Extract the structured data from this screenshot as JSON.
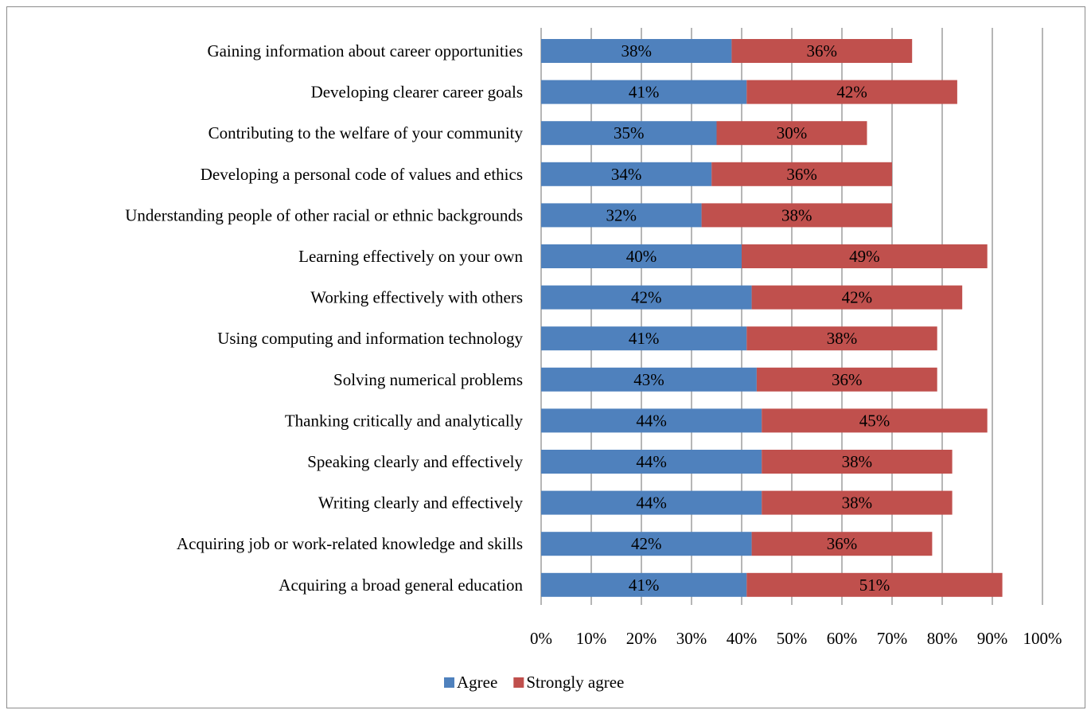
{
  "chart_data": {
    "type": "bar",
    "orientation": "horizontal",
    "stacked": true,
    "categories": [
      "Gaining information about career opportunities",
      "Developing clearer career goals",
      "Contributing to the welfare of your community",
      "Developing a personal code of values and ethics",
      "Understanding people of other racial or ethnic backgrounds",
      "Learning effectively on your own",
      "Working effectively with others",
      "Using computing and information technology",
      "Solving numerical problems",
      "Thanking critically and analytically",
      "Speaking clearly and effectively",
      "Writing clearly and effectively",
      "Acquiring job or work-related knowledge and skills",
      "Acquiring a broad general education"
    ],
    "series": [
      {
        "name": "Agree",
        "color": "#4f81bd",
        "values": [
          38,
          41,
          35,
          34,
          32,
          40,
          42,
          41,
          43,
          44,
          44,
          44,
          42,
          41
        ],
        "labels": [
          "38%",
          "41%",
          "35%",
          "34%",
          "32%",
          "40%",
          "42%",
          "41%",
          "43%",
          "44%",
          "44%",
          "44%",
          "42%",
          "41%"
        ]
      },
      {
        "name": "Strongly agree",
        "color": "#c0504d",
        "values": [
          36,
          42,
          30,
          36,
          38,
          49,
          42,
          38,
          36,
          45,
          38,
          38,
          36,
          51
        ],
        "labels": [
          "36%",
          "42%",
          "30%",
          "36%",
          "38%",
          "49%",
          "42%",
          "38%",
          "36%",
          "45%",
          "38%",
          "38%",
          "36%",
          "51%"
        ]
      }
    ],
    "xlim": [
      0,
      100
    ],
    "xticks": [
      "0%",
      "10%",
      "20%",
      "30%",
      "40%",
      "50%",
      "60%",
      "70%",
      "80%",
      "90%",
      "100%"
    ],
    "grid": "vertical",
    "legend_position": "bottom",
    "title": "",
    "xlabel": "",
    "ylabel": ""
  }
}
